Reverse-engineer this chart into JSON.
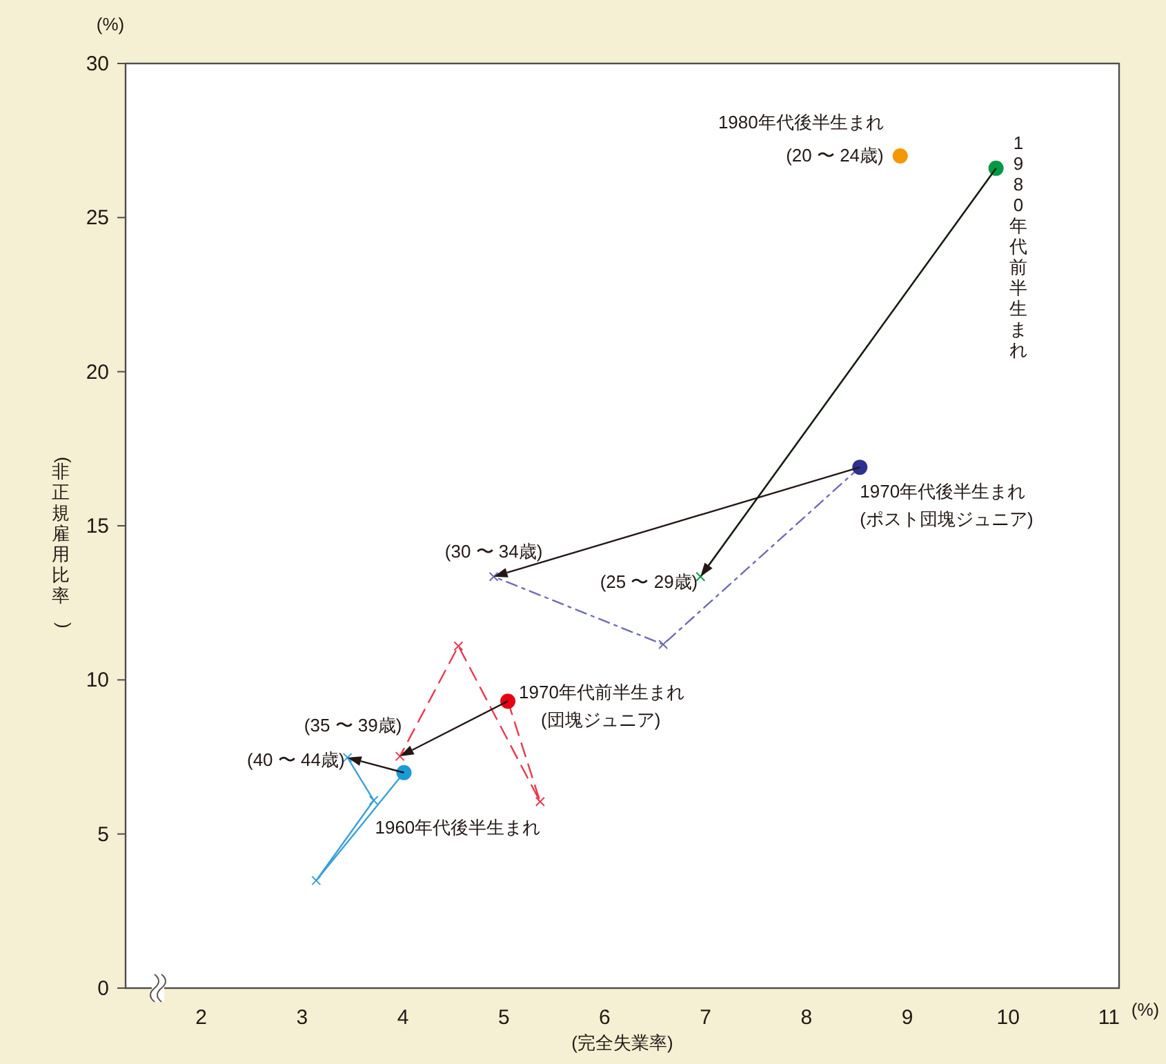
{
  "chart_data": {
    "type": "line",
    "xlabel": "(完全失業率)",
    "ylabel": "(非正規雇用比率)",
    "xlim": [
      1.25,
      11.1
    ],
    "ylim": [
      0,
      30
    ],
    "xticks": [
      2,
      3,
      4,
      5,
      6,
      7,
      8,
      9,
      10,
      11
    ],
    "yticks": [
      0,
      5,
      10,
      15,
      20,
      25,
      30
    ],
    "grid": false,
    "marker": "cross",
    "series": [
      {
        "type": "line",
        "color": "#3aa0d8",
        "line_style": "solid",
        "x": [
          4.01,
          3.14,
          3.71,
          3.45
        ],
        "values": [
          6.99,
          3.49,
          6.09,
          7.48
        ]
      },
      {
        "type": "line",
        "color": "#e8384f",
        "line_style": "dashed",
        "x": [
          5.04,
          5.36,
          4.55,
          3.97
        ],
        "values": [
          9.31,
          6.05,
          11.1,
          7.52
        ]
      },
      {
        "type": "line",
        "color": "#6d6bb5",
        "line_style": "dashdot",
        "x": [
          8.53,
          6.58,
          4.9
        ],
        "values": [
          16.9,
          11.15,
          13.35
        ]
      },
      {
        "type": "line",
        "color": "#009944",
        "line_style": "solid",
        "x": [
          9.88,
          6.95
        ],
        "values": [
          26.6,
          13.35
        ]
      },
      {
        "type": "scatter",
        "marker": "circle",
        "x": [
          4.01,
          5.04,
          8.53,
          9.88,
          8.93
        ],
        "values": [
          6.99,
          9.31,
          16.9,
          26.6,
          27.0
        ],
        "colors": [
          "#1a9ad6",
          "#e60012",
          "#2e3192",
          "#009944",
          "#f39800"
        ]
      }
    ],
    "annotations": [
      {
        "text": "1980年代後半生まれ\n(20 〜 24歳)",
        "x": 8.93,
        "y": 27.0
      },
      "1980年代前半生まれ",
      {
        "text": "1970年代後半生まれ\n(ポスト団塊ジュニア)",
        "x": 8.53,
        "y": 16.9
      },
      {
        "text": "1970年代前半生まれ\n(団塊ジュニア)",
        "x": 5.04,
        "y": 9.31
      },
      {
        "text": "1960年代後半生まれ",
        "x": 4.01,
        "y": 6.99
      },
      {
        "text": "(25 〜 29歳)",
        "x": 6.95,
        "y": 13.35
      },
      {
        "text": "(30 〜 34歳)",
        "x": 4.9,
        "y": 13.35
      },
      {
        "text": "(35 〜 39歳)",
        "x": 3.97,
        "y": 7.52
      },
      {
        "text": "(40 〜 44歳)",
        "x": 3.45,
        "y": 7.48
      },
      "(%)",
      "(%)"
    ]
  }
}
